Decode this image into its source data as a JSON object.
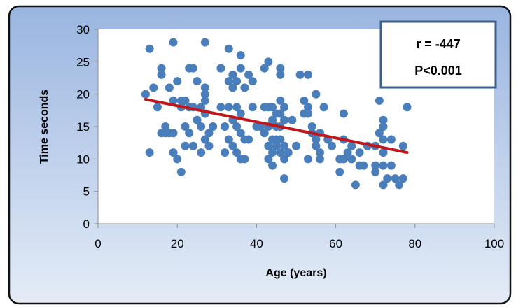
{
  "chart_data": {
    "type": "scatter",
    "title": "",
    "xlabel": "Age (years)",
    "ylabel": "Time seconds",
    "xlim": [
      0,
      100
    ],
    "ylim": [
      0,
      30
    ],
    "xticks": [
      0,
      20,
      40,
      60,
      80,
      100
    ],
    "yticks": [
      0,
      5,
      10,
      15,
      20,
      25,
      30
    ],
    "grid": false,
    "legend": "none",
    "annotation": {
      "line1": "r = -447",
      "line2": "P<0.001"
    },
    "colors": {
      "points": "#4a7ebb",
      "trendline": "#c0151b",
      "background_top": "#9ab5e0",
      "background_bottom": "#e4ecf7",
      "border": "#111111",
      "annotation_border": "#3a5e8c"
    },
    "trendline": {
      "x": [
        12,
        78
      ],
      "y": [
        19.2,
        11
      ]
    },
    "series": [
      {
        "points": [
          [
            12,
            20
          ],
          [
            13,
            27
          ],
          [
            13,
            11
          ],
          [
            14,
            21
          ],
          [
            15,
            18
          ],
          [
            16,
            24
          ],
          [
            16,
            23
          ],
          [
            16,
            14
          ],
          [
            17,
            15
          ],
          [
            17,
            14
          ],
          [
            18,
            21
          ],
          [
            18,
            14
          ],
          [
            19,
            28
          ],
          [
            19,
            19
          ],
          [
            19,
            11
          ],
          [
            19,
            14
          ],
          [
            20,
            22
          ],
          [
            20,
            10
          ],
          [
            21,
            19
          ],
          [
            21,
            18
          ],
          [
            21,
            8
          ],
          [
            22,
            19
          ],
          [
            22,
            12
          ],
          [
            22,
            15
          ],
          [
            23,
            24
          ],
          [
            23,
            18
          ],
          [
            23,
            14
          ],
          [
            24,
            24
          ],
          [
            24,
            12
          ],
          [
            24,
            18
          ],
          [
            25,
            22
          ],
          [
            25,
            16
          ],
          [
            26,
            18
          ],
          [
            26,
            15
          ],
          [
            26,
            11
          ],
          [
            27,
            28
          ],
          [
            27,
            21
          ],
          [
            27,
            20
          ],
          [
            27,
            19
          ],
          [
            27,
            17
          ],
          [
            27,
            13
          ],
          [
            28,
            14
          ],
          [
            28,
            12
          ],
          [
            29,
            15
          ],
          [
            31,
            24
          ],
          [
            31,
            18
          ],
          [
            32,
            15
          ],
          [
            32,
            11
          ],
          [
            33,
            27
          ],
          [
            33,
            22
          ],
          [
            33,
            18
          ],
          [
            33,
            13
          ],
          [
            34,
            23
          ],
          [
            34,
            21
          ],
          [
            34,
            16
          ],
          [
            34,
            12
          ],
          [
            35,
            22
          ],
          [
            35,
            18
          ],
          [
            35,
            15
          ],
          [
            35,
            11
          ],
          [
            36,
            26
          ],
          [
            36,
            24
          ],
          [
            36,
            17
          ],
          [
            36,
            14
          ],
          [
            36,
            10
          ],
          [
            37,
            21
          ],
          [
            37,
            13
          ],
          [
            37,
            10
          ],
          [
            38,
            23
          ],
          [
            38,
            13
          ],
          [
            39,
            22
          ],
          [
            39,
            18
          ],
          [
            40,
            15
          ],
          [
            41,
            15
          ],
          [
            42,
            24
          ],
          [
            42,
            18
          ],
          [
            42,
            14
          ],
          [
            43,
            25
          ],
          [
            43,
            18
          ],
          [
            43,
            15
          ],
          [
            43,
            12
          ],
          [
            43,
            10
          ],
          [
            44,
            18
          ],
          [
            44,
            16
          ],
          [
            44,
            13
          ],
          [
            44,
            11
          ],
          [
            44,
            9
          ],
          [
            45,
            17
          ],
          [
            45,
            15
          ],
          [
            45,
            13
          ],
          [
            45,
            12
          ],
          [
            46,
            24
          ],
          [
            46,
            23
          ],
          [
            46,
            19
          ],
          [
            46,
            17
          ],
          [
            46,
            15
          ],
          [
            46,
            13
          ],
          [
            46,
            11
          ],
          [
            47,
            18
          ],
          [
            47,
            16
          ],
          [
            47,
            12
          ],
          [
            47,
            10
          ],
          [
            47,
            7
          ],
          [
            48,
            11
          ],
          [
            49,
            16
          ],
          [
            50,
            12
          ],
          [
            51,
            23
          ],
          [
            52,
            19
          ],
          [
            52,
            17
          ],
          [
            53,
            23
          ],
          [
            53,
            18
          ],
          [
            53,
            17
          ],
          [
            53,
            10
          ],
          [
            54,
            15
          ],
          [
            54,
            14
          ],
          [
            55,
            20
          ],
          [
            55,
            13
          ],
          [
            55,
            12
          ],
          [
            56,
            14
          ],
          [
            56,
            11
          ],
          [
            56,
            10
          ],
          [
            57,
            18
          ],
          [
            58,
            13
          ],
          [
            59,
            12
          ],
          [
            61,
            10
          ],
          [
            61,
            8
          ],
          [
            62,
            17
          ],
          [
            62,
            13
          ],
          [
            62,
            10
          ],
          [
            63,
            11
          ],
          [
            64,
            12
          ],
          [
            64,
            10
          ],
          [
            65,
            6
          ],
          [
            66,
            11
          ],
          [
            66,
            9
          ],
          [
            67,
            9
          ],
          [
            68,
            12
          ],
          [
            70,
            12
          ],
          [
            70,
            9
          ],
          [
            70,
            8
          ],
          [
            71,
            19
          ],
          [
            71,
            14
          ],
          [
            72,
            16
          ],
          [
            72,
            15
          ],
          [
            72,
            13
          ],
          [
            72,
            11
          ],
          [
            72,
            9
          ],
          [
            72,
            6
          ],
          [
            73,
            7
          ],
          [
            74,
            13
          ],
          [
            74,
            9
          ],
          [
            75,
            7
          ],
          [
            76,
            6
          ],
          [
            77,
            12
          ],
          [
            77,
            7
          ],
          [
            78,
            18
          ]
        ]
      }
    ]
  }
}
